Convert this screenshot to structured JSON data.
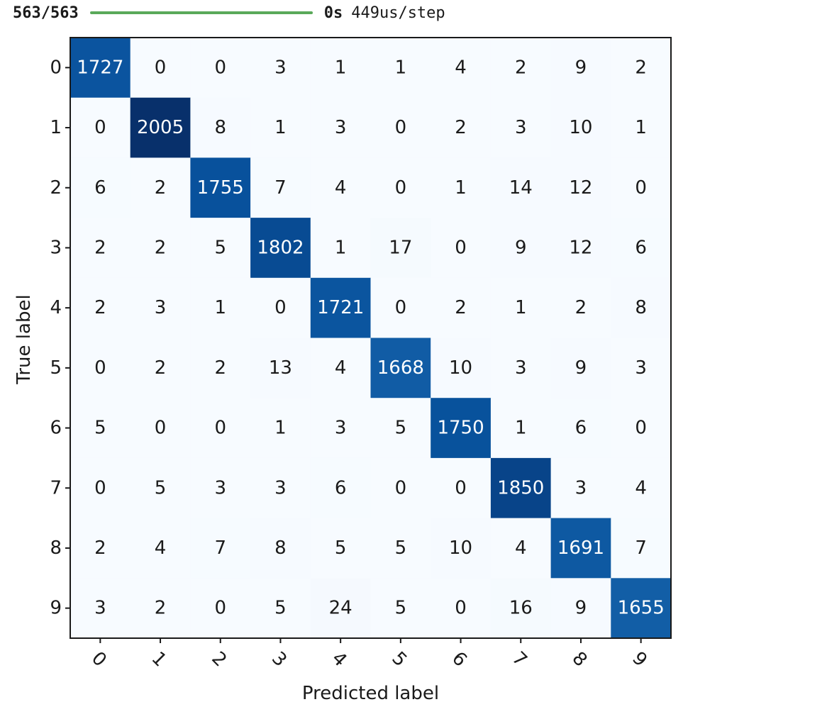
{
  "progress": {
    "count": "563/563",
    "fraction": 1.0,
    "bar_color": "#5aa95a",
    "elapsed": "0s",
    "rate": "449us/step"
  },
  "chart_data": {
    "type": "heatmap",
    "colormap": "Blues",
    "xlabel": "Predicted label",
    "ylabel": "True label",
    "x_categories": [
      "0",
      "1",
      "2",
      "3",
      "4",
      "5",
      "6",
      "7",
      "8",
      "9"
    ],
    "y_categories": [
      "0",
      "1",
      "2",
      "3",
      "4",
      "5",
      "6",
      "7",
      "8",
      "9"
    ],
    "x_tick_rotation_deg": 45,
    "values": [
      [
        1727,
        0,
        0,
        3,
        1,
        1,
        4,
        2,
        9,
        2
      ],
      [
        0,
        2005,
        8,
        1,
        3,
        0,
        2,
        3,
        10,
        1
      ],
      [
        6,
        2,
        1755,
        7,
        4,
        0,
        1,
        14,
        12,
        0
      ],
      [
        2,
        2,
        5,
        1802,
        1,
        17,
        0,
        9,
        12,
        6
      ],
      [
        2,
        3,
        1,
        0,
        1721,
        0,
        2,
        1,
        2,
        8
      ],
      [
        0,
        2,
        2,
        13,
        4,
        1668,
        10,
        3,
        9,
        3
      ],
      [
        5,
        0,
        0,
        1,
        3,
        5,
        1750,
        1,
        6,
        0
      ],
      [
        0,
        5,
        3,
        3,
        6,
        0,
        0,
        1850,
        3,
        4
      ],
      [
        2,
        4,
        7,
        8,
        5,
        5,
        10,
        4,
        1691,
        7
      ],
      [
        3,
        2,
        0,
        5,
        24,
        5,
        0,
        16,
        9,
        1655
      ]
    ],
    "colorbar": false,
    "grid": false
  }
}
